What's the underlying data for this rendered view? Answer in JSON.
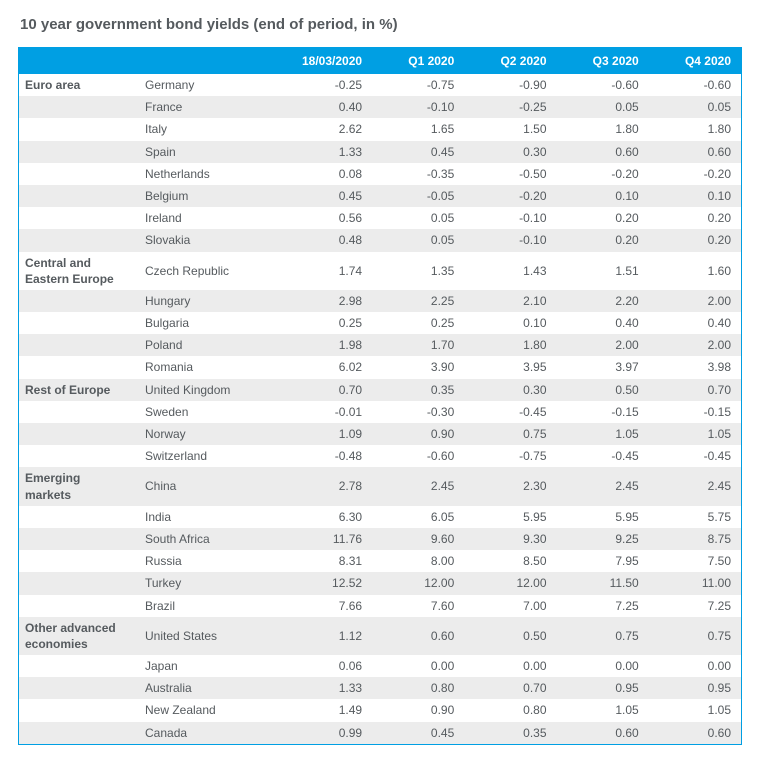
{
  "title": "10 year government bond yields (end of period, in %)",
  "columns": [
    "",
    "",
    "18/03/2020",
    "Q1 2020",
    "Q2 2020",
    "Q3 2020",
    "Q4 2020"
  ],
  "header_bg": "#009fe3",
  "header_fg": "#ffffff",
  "row_bg_even": "#ffffff",
  "row_bg_odd": "#ececec",
  "text_color": "#555a5e",
  "regions": [
    {
      "label": "Euro area",
      "rows": [
        [
          "Germany",
          "-0.25",
          "-0.75",
          "-0.90",
          "-0.60",
          "-0.60"
        ],
        [
          "France",
          "0.40",
          "-0.10",
          "-0.25",
          "0.05",
          "0.05"
        ],
        [
          "Italy",
          "2.62",
          "1.65",
          "1.50",
          "1.80",
          "1.80"
        ],
        [
          "Spain",
          "1.33",
          "0.45",
          "0.30",
          "0.60",
          "0.60"
        ],
        [
          "Netherlands",
          "0.08",
          "-0.35",
          "-0.50",
          "-0.20",
          "-0.20"
        ],
        [
          "Belgium",
          "0.45",
          "-0.05",
          "-0.20",
          "0.10",
          "0.10"
        ],
        [
          "Ireland",
          "0.56",
          "0.05",
          "-0.10",
          "0.20",
          "0.20"
        ],
        [
          "Slovakia",
          "0.48",
          "0.05",
          "-0.10",
          "0.20",
          "0.20"
        ]
      ]
    },
    {
      "label": "Central and\nEastern Europe",
      "rows": [
        [
          "Czech Republic",
          "1.74",
          "1.35",
          "1.43",
          "1.51",
          "1.60"
        ],
        [
          "Hungary",
          "2.98",
          "2.25",
          "2.10",
          "2.20",
          "2.00"
        ],
        [
          "Bulgaria",
          "0.25",
          "0.25",
          "0.10",
          "0.40",
          "0.40"
        ],
        [
          "Poland",
          "1.98",
          "1.70",
          "1.80",
          "2.00",
          "2.00"
        ],
        [
          "Romania",
          "6.02",
          "3.90",
          "3.95",
          "3.97",
          "3.98"
        ]
      ]
    },
    {
      "label": "Rest of Europe",
      "rows": [
        [
          "United Kingdom",
          "0.70",
          "0.35",
          "0.30",
          "0.50",
          "0.70"
        ],
        [
          "Sweden",
          "-0.01",
          "-0.30",
          "-0.45",
          "-0.15",
          "-0.15"
        ],
        [
          "Norway",
          "1.09",
          "0.90",
          "0.75",
          "1.05",
          "1.05"
        ],
        [
          "Switzerland",
          "-0.48",
          "-0.60",
          "-0.75",
          "-0.45",
          "-0.45"
        ]
      ]
    },
    {
      "label": "Emerging markets",
      "rows": [
        [
          "China",
          "2.78",
          "2.45",
          "2.30",
          "2.45",
          "2.45"
        ],
        [
          "India",
          "6.30",
          "6.05",
          "5.95",
          "5.95",
          "5.75"
        ],
        [
          "South Africa",
          "11.76",
          "9.60",
          "9.30",
          "9.25",
          "8.75"
        ],
        [
          "Russia",
          "8.31",
          "8.00",
          "8.50",
          "7.95",
          "7.50"
        ],
        [
          "Turkey",
          "12.52",
          "12.00",
          "12.00",
          "11.50",
          "11.00"
        ],
        [
          "Brazil",
          "7.66",
          "7.60",
          "7.00",
          "7.25",
          "7.25"
        ]
      ]
    },
    {
      "label": "Other advanced\neconomies",
      "rows": [
        [
          "United States",
          "1.12",
          "0.60",
          "0.50",
          "0.75",
          "0.75"
        ],
        [
          "Japan",
          "0.06",
          "0.00",
          "0.00",
          "0.00",
          "0.00"
        ],
        [
          "Australia",
          "1.33",
          "0.80",
          "0.70",
          "0.95",
          "0.95"
        ],
        [
          "New Zealand",
          "1.49",
          "0.90",
          "0.80",
          "1.05",
          "1.05"
        ],
        [
          "Canada",
          "0.99",
          "0.45",
          "0.35",
          "0.60",
          "0.60"
        ]
      ]
    }
  ]
}
